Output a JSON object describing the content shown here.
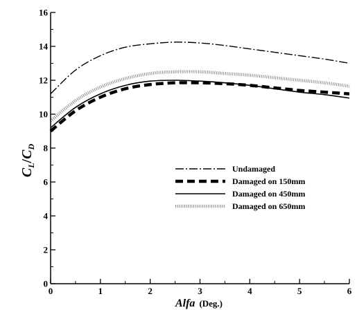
{
  "chart_data": {
    "type": "line",
    "title": "",
    "xlabel": "Alfa",
    "xlabel_unit": "(Deg.)",
    "ylabel": "C_L/C_D",
    "xlim": [
      0,
      6
    ],
    "ylim": [
      0,
      16
    ],
    "x_ticks": [
      0,
      1,
      2,
      3,
      4,
      5,
      6
    ],
    "y_ticks": [
      0,
      2,
      4,
      6,
      8,
      10,
      12,
      14,
      16
    ],
    "grid": false,
    "legend_position": "center-right",
    "series": [
      {
        "name": "Undamaged",
        "style": "dash-dot",
        "color": "#000000",
        "x": [
          0,
          0.5,
          1,
          1.5,
          2,
          2.5,
          3,
          3.5,
          4,
          4.5,
          5,
          5.5,
          6
        ],
        "y": [
          11.2,
          12.6,
          13.45,
          13.95,
          14.15,
          14.25,
          14.2,
          14.05,
          13.85,
          13.65,
          13.45,
          13.25,
          13.0
        ]
      },
      {
        "name": "Damaged on 150mm",
        "style": "thick-dash",
        "color": "#000000",
        "x": [
          0,
          0.5,
          1,
          1.5,
          2,
          2.5,
          3,
          3.5,
          4,
          4.5,
          5,
          5.5,
          6
        ],
        "y": [
          9.0,
          10.2,
          11.0,
          11.5,
          11.75,
          11.85,
          11.85,
          11.8,
          11.7,
          11.55,
          11.4,
          11.3,
          11.2
        ]
      },
      {
        "name": "Damaged on 450mm",
        "style": "solid",
        "color": "#000000",
        "x": [
          0,
          0.5,
          1,
          1.5,
          2,
          2.5,
          3,
          3.5,
          4,
          4.5,
          5,
          5.5,
          6
        ],
        "y": [
          9.2,
          10.4,
          11.2,
          11.7,
          11.95,
          12.0,
          11.95,
          11.85,
          11.7,
          11.5,
          11.3,
          11.15,
          10.95
        ]
      },
      {
        "name": "Damaged on 650mm",
        "style": "dotted",
        "color": "#8c8c8c",
        "x": [
          0,
          0.5,
          1,
          1.5,
          2,
          2.5,
          3,
          3.5,
          4,
          4.5,
          5,
          5.5,
          6
        ],
        "y": [
          9.6,
          10.8,
          11.6,
          12.1,
          12.4,
          12.5,
          12.5,
          12.4,
          12.3,
          12.15,
          12.0,
          11.85,
          11.65
        ]
      }
    ]
  }
}
